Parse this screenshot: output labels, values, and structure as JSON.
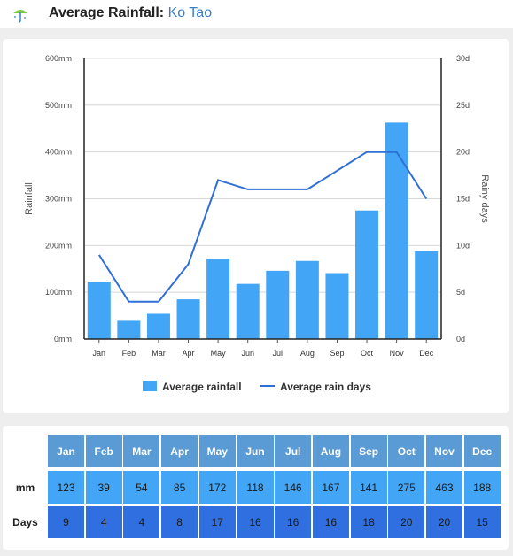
{
  "header": {
    "title_prefix": "Average Rainfall:",
    "location": "Ko Tao",
    "icon": "umbrella-icon"
  },
  "chart_data": {
    "type": "bar",
    "categories": [
      "Jan",
      "Feb",
      "Mar",
      "Apr",
      "May",
      "Jun",
      "Jul",
      "Aug",
      "Sep",
      "Oct",
      "Nov",
      "Dec"
    ],
    "series": [
      {
        "name": "Average rainfall",
        "type": "bar",
        "axis": "left",
        "color": "#42a5f5",
        "values": [
          123,
          39,
          54,
          85,
          172,
          118,
          146,
          167,
          141,
          275,
          463,
          188
        ]
      },
      {
        "name": "Average rain days",
        "type": "line",
        "axis": "right",
        "color": "#2f6fd6",
        "values": [
          9,
          4,
          4,
          8,
          17,
          16,
          16,
          16,
          18,
          20,
          20,
          15
        ]
      }
    ],
    "ylabel": "Rainfall",
    "y2label": "Rainy days",
    "ylim": [
      0,
      600
    ],
    "y2lim": [
      0,
      30
    ],
    "yticks": [
      "0mm",
      "100mm",
      "200mm",
      "300mm",
      "400mm",
      "500mm",
      "600mm"
    ],
    "y2ticks": [
      "0d",
      "5d",
      "10d",
      "15d",
      "20d",
      "25d",
      "30d"
    ],
    "grid": true,
    "legend_position": "bottom"
  },
  "table": {
    "months": [
      "Jan",
      "Feb",
      "Mar",
      "Apr",
      "May",
      "Jun",
      "Jul",
      "Aug",
      "Sep",
      "Oct",
      "Nov",
      "Dec"
    ],
    "mm_label": "mm",
    "days_label": "Days",
    "mm": [
      "123",
      "39",
      "54",
      "85",
      "172",
      "118",
      "146",
      "167",
      "141",
      "275",
      "463",
      "188"
    ],
    "days": [
      "9",
      "4",
      "4",
      "8",
      "17",
      "16",
      "16",
      "16",
      "18",
      "20",
      "20",
      "15"
    ]
  },
  "colors": {
    "bar": "#42a5f5",
    "line": "#2f6fd6",
    "header_cell": "#5b9bd5",
    "mm_cell": "#42a5f5",
    "days_cell": "#2f6fe0",
    "location": "#3a7ec8"
  }
}
